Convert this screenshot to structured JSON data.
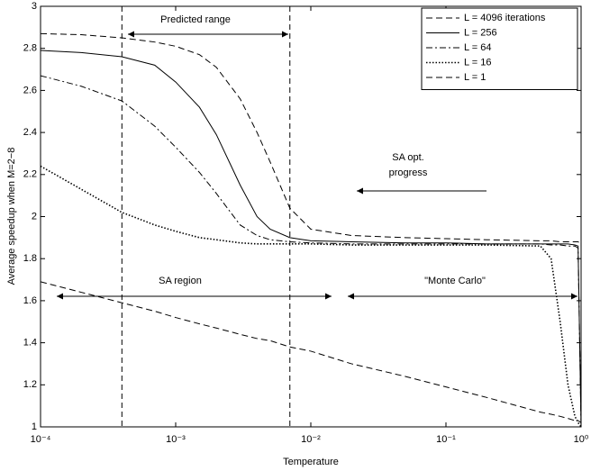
{
  "chart_data": {
    "type": "line",
    "x_label": "Temperature",
    "y_label": "Average speedup when M=2−8",
    "xscale": "log",
    "xlim": [
      0.0001,
      1
    ],
    "ylim": [
      1,
      3
    ],
    "xticks": [
      {
        "value": 0.0001,
        "label": "10⁻⁴"
      },
      {
        "value": 0.001,
        "label": "10⁻³"
      },
      {
        "value": 0.01,
        "label": "10⁻²"
      },
      {
        "value": 0.1,
        "label": "10⁻¹"
      },
      {
        "value": 1,
        "label": "10⁰"
      }
    ],
    "yticks": [
      1,
      1.2,
      1.4,
      1.6,
      1.8,
      2,
      2.2,
      2.4,
      2.6,
      2.8,
      3
    ],
    "legend": "upper right",
    "vlines": [
      0.0004,
      0.007
    ],
    "annotations": [
      "Predicted range",
      "SA opt.",
      "progress",
      "SA region",
      "\"Monte Carlo\""
    ],
    "x": [
      0.0001,
      0.0002,
      0.0004,
      0.0007,
      0.001,
      0.0015,
      0.002,
      0.003,
      0.004,
      0.005,
      0.007,
      0.01,
      0.02,
      0.05,
      0.1,
      0.2,
      0.5,
      0.6,
      0.7,
      0.8,
      0.9,
      0.95,
      1
    ],
    "series": [
      {
        "name": "L = 4096 iterations",
        "color": "#000000",
        "style": "dashed",
        "values": [
          2.87,
          2.865,
          2.85,
          2.83,
          2.81,
          2.77,
          2.71,
          2.56,
          2.4,
          2.26,
          2.04,
          1.94,
          1.91,
          1.9,
          1.895,
          1.89,
          1.885,
          1.885,
          1.88,
          1.88,
          1.88,
          1.88,
          1.87
        ]
      },
      {
        "name": "L = 256",
        "color": "#000000",
        "style": "solid",
        "values": [
          2.79,
          2.78,
          2.76,
          2.72,
          2.64,
          2.52,
          2.39,
          2.15,
          2.0,
          1.94,
          1.9,
          1.885,
          1.88,
          1.875,
          1.875,
          1.87,
          1.87,
          1.87,
          1.87,
          1.87,
          1.865,
          1.86,
          1.0
        ]
      },
      {
        "name": "L = 64",
        "color": "#000000",
        "style": "dashdot",
        "values": [
          2.67,
          2.62,
          2.55,
          2.43,
          2.33,
          2.21,
          2.11,
          1.96,
          1.91,
          1.89,
          1.88,
          1.875,
          1.87,
          1.87,
          1.87,
          1.87,
          1.87,
          1.865,
          1.865,
          1.86,
          1.86,
          1.85,
          1.0
        ]
      },
      {
        "name": "L = 16",
        "color": "#000000",
        "style": "dotted",
        "values": [
          2.24,
          2.13,
          2.02,
          1.96,
          1.93,
          1.9,
          1.89,
          1.875,
          1.87,
          1.87,
          1.87,
          1.87,
          1.865,
          1.865,
          1.865,
          1.865,
          1.86,
          1.8,
          1.5,
          1.2,
          1.05,
          1.02,
          1.0
        ]
      },
      {
        "name": "L = 1",
        "color": "#000000",
        "style": "dashed",
        "values": [
          1.69,
          1.64,
          1.59,
          1.55,
          1.52,
          1.49,
          1.47,
          1.44,
          1.42,
          1.41,
          1.38,
          1.36,
          1.3,
          1.24,
          1.19,
          1.14,
          1.07,
          1.06,
          1.05,
          1.04,
          1.03,
          1.03,
          1.02
        ]
      }
    ]
  }
}
